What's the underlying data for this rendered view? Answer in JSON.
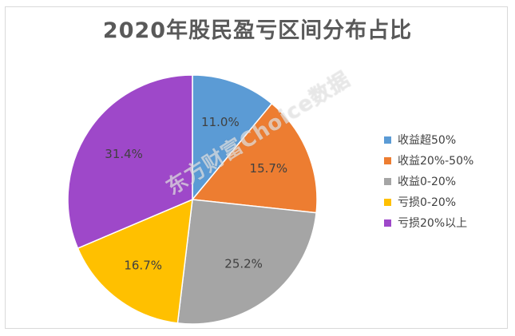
{
  "chart_data": {
    "type": "pie",
    "title": "2020年股民盈亏区间分布占比",
    "categories": [
      "收益超50%",
      "收益20%-50%",
      "收益0-20%",
      "亏损0-20%",
      "亏损20%以上"
    ],
    "values": [
      11.0,
      15.7,
      25.2,
      16.7,
      31.4
    ],
    "data_labels": [
      "11.0%",
      "15.7%",
      "25.2%",
      "16.7%",
      "31.4%"
    ],
    "colors": [
      "#5b9bd5",
      "#ed7d31",
      "#a5a5a5",
      "#ffc000",
      "#9e48c9"
    ],
    "legend_position": "right"
  },
  "watermark": "东方财富Choice数据"
}
